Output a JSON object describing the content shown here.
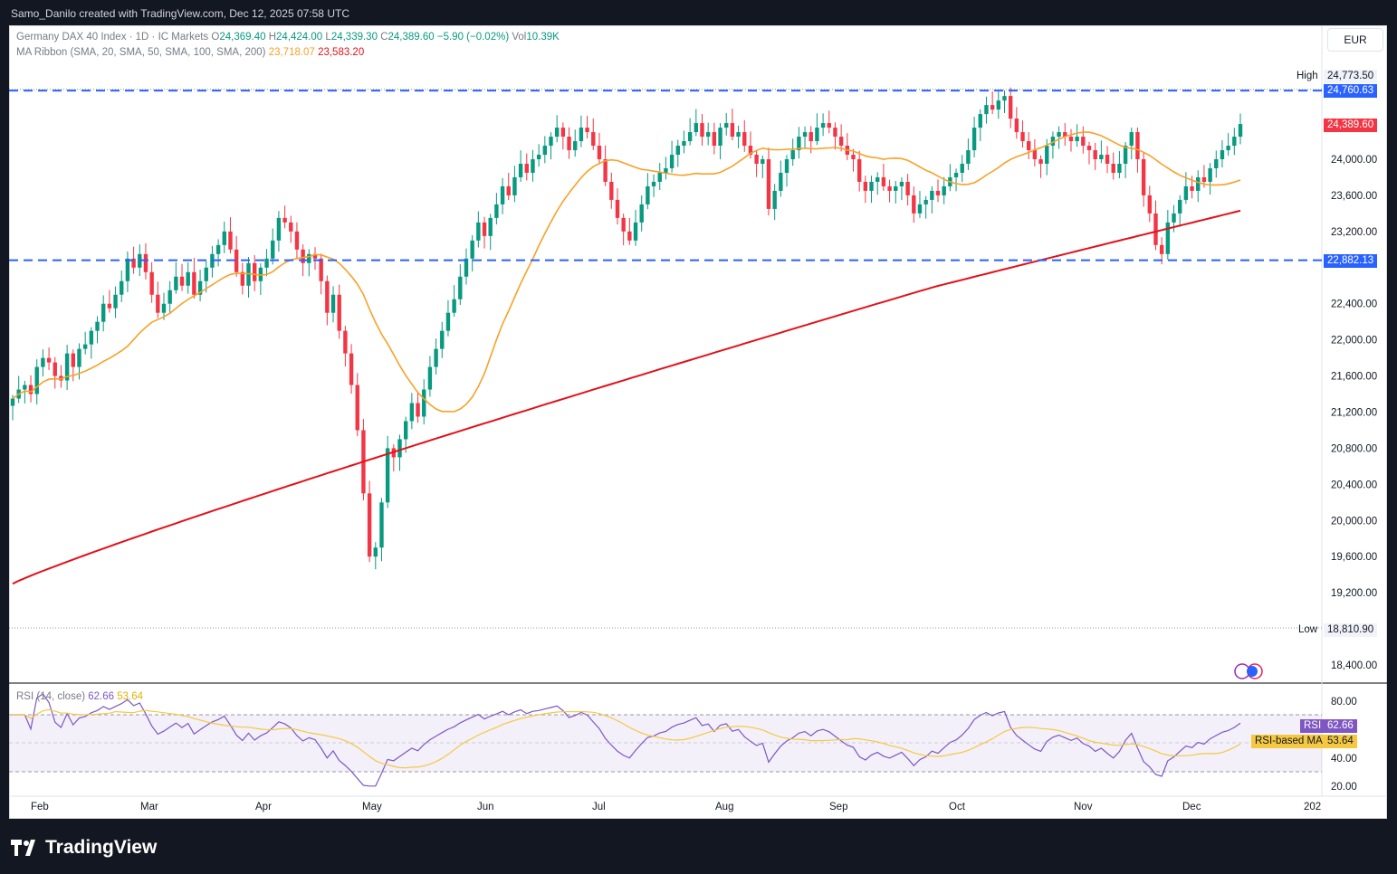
{
  "header": {
    "credit": "Samo_Danilo created with TradingView.com, Dec 12, 2025 07:58 UTC"
  },
  "currency_button": "EUR",
  "legend": {
    "symbol": "Germany DAX 40 Index · 1D · IC Markets",
    "o_label": "O",
    "o_value": "24,369.40",
    "h_label": "H",
    "h_value": "24,424.00",
    "l_label": "L",
    "l_value": "24,339.30",
    "c_label": "C",
    "c_value": "24,389.60",
    "change": "−5.90 (−0.02%)",
    "vol_label": "Vol",
    "vol_value": "10.39K",
    "ma_label": "MA Ribbon (SMA, 20, SMA, 50, SMA, 100, SMA, 200)",
    "ma1_value": "23,718.07",
    "ma2_value": "23,583.20"
  },
  "rsi_legend": {
    "label": "RSI (14, close)",
    "value": "62.66",
    "ma_value": "53.64"
  },
  "price_tags": {
    "high_label": "High",
    "high_value": "24,773.50",
    "resistance": "24,760.63",
    "last": "24,389.60",
    "support": "22,882.13",
    "low_label": "Low",
    "low_value": "18,810.90"
  },
  "rsi_tags": {
    "rsi_label": "RSI",
    "rsi_value": "62.66",
    "ma_label": "RSI-based MA",
    "ma_value": "53.64"
  },
  "brand": "TradingView",
  "colors": {
    "up": "#089981",
    "down": "#f23645",
    "ma20": "#f7a127",
    "ma200": "#e2111a",
    "level": "#2962ff",
    "rsi": "#7e57c2",
    "rsi_ma": "#f5c842"
  },
  "chart_data": {
    "type": "candlestick",
    "price_axis": {
      "ylim": [
        18200,
        24900
      ],
      "ticks": [
        "24,000.00",
        "23,600.00",
        "23,200.00",
        "22,400.00",
        "22,000.00",
        "21,600.00",
        "21,200.00",
        "20,800.00",
        "20,400.00",
        "20,000.00",
        "19,600.00",
        "19,200.00",
        "18,400.00"
      ],
      "tick_values": [
        24000,
        23600,
        23200,
        22400,
        22000,
        21600,
        21200,
        20800,
        20400,
        20000,
        19600,
        19200,
        18400
      ]
    },
    "time_axis": {
      "ticks": [
        "Feb",
        "Mar",
        "Apr",
        "May",
        "Jun",
        "Jul",
        "Aug",
        "Sep",
        "Oct",
        "Nov",
        "Dec",
        "202"
      ]
    },
    "levels": [
      {
        "value": 24760.63,
        "style": "dashed"
      },
      {
        "value": 22882.13,
        "style": "dashed"
      }
    ],
    "high": 24773.5,
    "low": 18810.9,
    "closes": [
      21350,
      21450,
      21500,
      21400,
      21700,
      21800,
      21750,
      21600,
      21550,
      21850,
      21700,
      21900,
      21950,
      22100,
      22200,
      22400,
      22350,
      22500,
      22650,
      22900,
      22800,
      22950,
      22750,
      22500,
      22300,
      22400,
      22550,
      22700,
      22600,
      22750,
      22500,
      22650,
      22800,
      22950,
      23050,
      23200,
      23000,
      22750,
      22600,
      22850,
      22650,
      22800,
      22900,
      23100,
      23350,
      23300,
      23200,
      23000,
      22850,
      22950,
      22900,
      22650,
      22300,
      22500,
      22100,
      21850,
      21500,
      21000,
      20300,
      19600,
      19700,
      20200,
      20800,
      20700,
      20900,
      21100,
      21300,
      21150,
      21450,
      21700,
      21900,
      22100,
      22300,
      22450,
      22700,
      22900,
      23100,
      23300,
      23150,
      23350,
      23500,
      23700,
      23600,
      23800,
      23950,
      23850,
      24000,
      24050,
      24150,
      24250,
      24350,
      24250,
      24100,
      24200,
      24350,
      24300,
      24150,
      24000,
      23750,
      23550,
      23350,
      23200,
      23100,
      23300,
      23500,
      23700,
      23750,
      23850,
      23900,
      24050,
      24150,
      24200,
      24300,
      24400,
      24250,
      24300,
      24150,
      24350,
      24400,
      24250,
      24300,
      24150,
      24050,
      23950,
      24000,
      23450,
      23650,
      23850,
      24000,
      24100,
      24250,
      24300,
      24200,
      24350,
      24400,
      24350,
      24250,
      24150,
      24050,
      24000,
      23750,
      23650,
      23750,
      23800,
      23700,
      23650,
      23700,
      23750,
      23600,
      23400,
      23500,
      23550,
      23650,
      23600,
      23700,
      23800,
      23850,
      23950,
      24100,
      24350,
      24500,
      24600,
      24550,
      24650,
      24700,
      24450,
      24300,
      24200,
      24100,
      24000,
      23950,
      24150,
      24250,
      24300,
      24250,
      24200,
      24250,
      24150,
      24100,
      24000,
      24050,
      23950,
      23850,
      23950,
      24150,
      24300,
      24000,
      23600,
      23400,
      23050,
      22950,
      23300,
      23400,
      23550,
      23700,
      23650,
      23800,
      23750,
      23900,
      24000,
      24100,
      24150,
      24250,
      24390
    ]
  }
}
